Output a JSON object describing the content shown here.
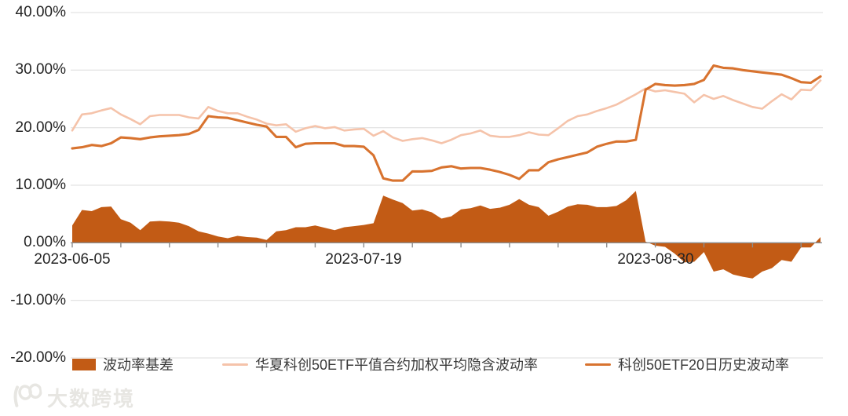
{
  "watermark": {
    "logo_text": "100",
    "text": "大数跨境"
  },
  "chart_data": {
    "type": "combo-area-line",
    "title": "",
    "grid": true,
    "legend_position": "bottom",
    "x_dates": [
      "2023-06-05",
      "2023-06-06",
      "2023-06-07",
      "2023-06-08",
      "2023-06-09",
      "2023-06-12",
      "2023-06-13",
      "2023-06-14",
      "2023-06-15",
      "2023-06-16",
      "2023-06-19",
      "2023-06-20",
      "2023-06-21",
      "2023-06-26",
      "2023-06-27",
      "2023-06-28",
      "2023-06-29",
      "2023-06-30",
      "2023-07-03",
      "2023-07-04",
      "2023-07-05",
      "2023-07-06",
      "2023-07-07",
      "2023-07-10",
      "2023-07-11",
      "2023-07-12",
      "2023-07-13",
      "2023-07-14",
      "2023-07-17",
      "2023-07-18",
      "2023-07-19",
      "2023-07-20",
      "2023-07-21",
      "2023-07-24",
      "2023-07-25",
      "2023-07-26",
      "2023-07-27",
      "2023-07-28",
      "2023-07-31",
      "2023-08-01",
      "2023-08-02",
      "2023-08-03",
      "2023-08-04",
      "2023-08-07",
      "2023-08-08",
      "2023-08-09",
      "2023-08-10",
      "2023-08-11",
      "2023-08-14",
      "2023-08-15",
      "2023-08-16",
      "2023-08-17",
      "2023-08-18",
      "2023-08-21",
      "2023-08-22",
      "2023-08-23",
      "2023-08-24",
      "2023-08-25",
      "2023-08-28",
      "2023-08-29",
      "2023-08-30",
      "2023-08-31",
      "2023-09-01",
      "2023-09-04",
      "2023-09-05",
      "2023-09-06",
      "2023-09-07",
      "2023-09-08",
      "2023-09-11",
      "2023-09-12",
      "2023-09-13",
      "2023-09-14",
      "2023-09-15",
      "2023-09-18",
      "2023-09-19",
      "2023-09-20",
      "2023-09-21",
      "2023-09-22"
    ],
    "series": [
      {
        "name": "波动率基差",
        "type": "area",
        "color": "#c25b15",
        "unit": "%",
        "values": [
          3.0,
          5.7,
          5.5,
          6.2,
          6.3,
          4.1,
          3.5,
          2.2,
          3.7,
          3.8,
          3.7,
          3.5,
          2.9,
          2.0,
          1.6,
          1.1,
          0.8,
          1.2,
          1.0,
          0.9,
          0.5,
          2.0,
          2.2,
          2.7,
          2.7,
          3.0,
          2.6,
          2.2,
          2.7,
          2.9,
          3.1,
          3.4,
          8.2,
          7.5,
          6.9,
          5.6,
          5.8,
          5.3,
          4.2,
          4.6,
          5.8,
          6.0,
          6.5,
          5.9,
          6.1,
          6.6,
          7.6,
          6.6,
          6.2,
          4.7,
          5.4,
          6.3,
          6.7,
          6.6,
          6.2,
          6.2,
          6.4,
          7.4,
          9.0,
          0.2,
          -0.5,
          -0.7,
          -1.9,
          -3.4,
          -3.3,
          -1.6,
          -5.0,
          -4.6,
          -5.5,
          -5.9,
          -6.2,
          -5.0,
          -4.4,
          -3.0,
          -3.3,
          -0.8,
          -0.8,
          1.0
        ]
      },
      {
        "name": "华夏科创50ETF平值合约加权平均隐含波动率",
        "type": "line",
        "color": "#f5c3aa",
        "unit": "%",
        "values": [
          19.5,
          22.3,
          22.5,
          23.0,
          23.4,
          22.3,
          21.5,
          20.6,
          22.0,
          22.2,
          22.2,
          22.2,
          21.8,
          21.6,
          23.6,
          22.9,
          22.5,
          22.5,
          21.9,
          21.4,
          20.7,
          20.4,
          20.6,
          19.3,
          19.9,
          20.3,
          19.9,
          20.1,
          19.5,
          19.7,
          19.8,
          18.6,
          19.4,
          18.3,
          17.7,
          18.0,
          18.2,
          17.8,
          17.3,
          17.9,
          18.7,
          19.0,
          19.5,
          18.6,
          18.4,
          18.4,
          18.7,
          19.2,
          18.8,
          18.7,
          19.9,
          21.2,
          22.0,
          22.3,
          22.9,
          23.4,
          24.0,
          24.9,
          25.8,
          26.8,
          26.3,
          26.5,
          26.2,
          25.9,
          24.4,
          25.7,
          25.0,
          25.5,
          24.8,
          24.2,
          23.6,
          23.3,
          24.6,
          25.8,
          24.9,
          26.6,
          26.5,
          28.2
        ]
      },
      {
        "name": "科创50ETF20日历史波动率",
        "type": "line",
        "color": "#d8732f",
        "unit": "%",
        "values": [
          16.4,
          16.6,
          17.0,
          16.8,
          17.3,
          18.3,
          18.2,
          18.0,
          18.3,
          18.5,
          18.6,
          18.7,
          18.9,
          19.6,
          22.0,
          21.8,
          21.7,
          21.3,
          20.9,
          20.5,
          20.2,
          18.4,
          18.4,
          16.6,
          17.2,
          17.3,
          17.3,
          17.3,
          16.8,
          16.8,
          16.7,
          15.2,
          11.2,
          10.8,
          10.8,
          12.4,
          12.4,
          12.5,
          13.1,
          13.3,
          12.9,
          13.0,
          13.0,
          12.7,
          12.3,
          11.8,
          11.1,
          12.6,
          12.6,
          14.0,
          14.5,
          14.9,
          15.3,
          15.7,
          16.7,
          17.2,
          17.6,
          17.6,
          17.9,
          26.6,
          27.6,
          27.4,
          27.3,
          27.4,
          27.6,
          28.3,
          30.8,
          30.4,
          30.3,
          30.0,
          29.8,
          29.6,
          29.4,
          29.2,
          28.6,
          27.9,
          27.8,
          28.9
        ]
      }
    ],
    "y_axis": {
      "min": -20,
      "max": 40,
      "tick_step": 10,
      "ticks": [
        {
          "value": 40,
          "label": "40.00%"
        },
        {
          "value": 30,
          "label": "30.00%"
        },
        {
          "value": 20,
          "label": "20.00%"
        },
        {
          "value": 10,
          "label": "10.00%"
        },
        {
          "value": 0,
          "label": "0.00%"
        },
        {
          "value": -10,
          "label": "-10.00%"
        },
        {
          "value": -20,
          "label": "-20.00%"
        }
      ]
    },
    "x_axis": {
      "minor_tick_every": 5,
      "labeled_ticks": [
        {
          "index": 0,
          "label": "2023-06-05"
        },
        {
          "index": 30,
          "label": "2023-07-19"
        },
        {
          "index": 60,
          "label": "2023-08-30"
        }
      ]
    },
    "colors": {
      "gridline": "#dcdcdc",
      "axis": "#8c8c8c",
      "text": "#242424"
    }
  }
}
